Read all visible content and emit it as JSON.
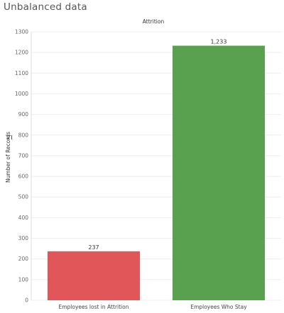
{
  "title": "Unbalanced data",
  "chart_data": {
    "type": "bar",
    "header": "Attrition",
    "categories": [
      "Employees lost in Attrition",
      "Employees Who Stay"
    ],
    "values": [
      237,
      1233
    ],
    "value_labels": [
      "237",
      "1,233"
    ],
    "colors": [
      "#e15759",
      "#59a14f"
    ],
    "xlabel": "",
    "ylabel": "Number of Records",
    "ylim": [
      0,
      1300
    ],
    "yticks": [
      0,
      100,
      200,
      300,
      400,
      500,
      600,
      700,
      800,
      900,
      1000,
      1100,
      1200,
      1300
    ],
    "grid": true
  }
}
